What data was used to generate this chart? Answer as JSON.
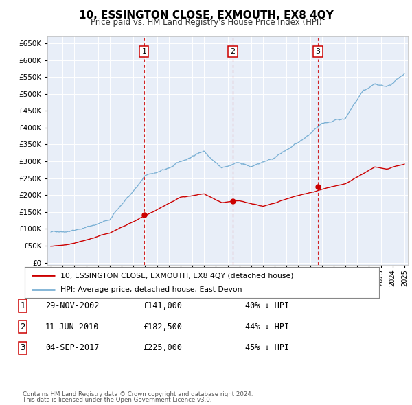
{
  "title": "10, ESSINGTON CLOSE, EXMOUTH, EX8 4QY",
  "subtitle": "Price paid vs. HM Land Registry's House Price Index (HPI)",
  "legend_line1": "10, ESSINGTON CLOSE, EXMOUTH, EX8 4QY (detached house)",
  "legend_line2": "HPI: Average price, detached house, East Devon",
  "footer_line1": "Contains HM Land Registry data © Crown copyright and database right 2024.",
  "footer_line2": "This data is licensed under the Open Government Licence v3.0.",
  "sale_color": "#cc0000",
  "hpi_color": "#7ab0d4",
  "vline_color": "#cc0000",
  "plot_bg_color": "#e8eef8",
  "yticks": [
    0,
    50000,
    100000,
    150000,
    200000,
    250000,
    300000,
    350000,
    400000,
    450000,
    500000,
    550000,
    600000,
    650000
  ],
  "sales": [
    {
      "date_num": 2002.91,
      "price": 141000,
      "label": "1"
    },
    {
      "date_num": 2010.44,
      "price": 182500,
      "label": "2"
    },
    {
      "date_num": 2017.67,
      "price": 225000,
      "label": "3"
    }
  ],
  "table_entries": [
    {
      "num": "1",
      "date": "29-NOV-2002",
      "price": "£141,000",
      "pct": "40% ↓ HPI"
    },
    {
      "num": "2",
      "date": "11-JUN-2010",
      "price": "£182,500",
      "pct": "44% ↓ HPI"
    },
    {
      "num": "3",
      "date": "04-SEP-2017",
      "price": "£225,000",
      "pct": "45% ↓ HPI"
    }
  ]
}
